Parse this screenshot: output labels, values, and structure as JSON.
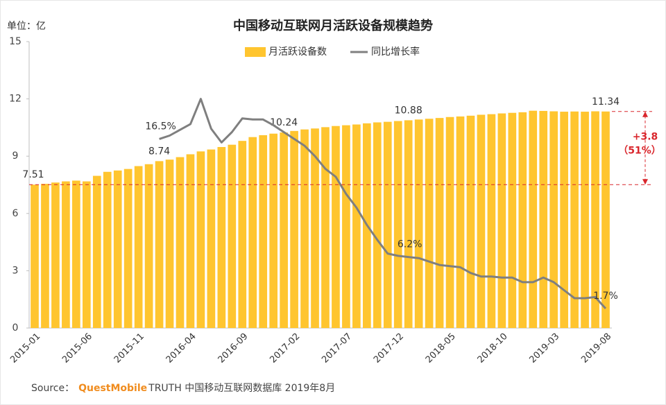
{
  "chart_data": {
    "type": "bar_line",
    "title": "中国移动互联网月活跃设备规模趋势",
    "unit_label": "单位：亿",
    "categories": [
      "2015-01",
      null,
      null,
      null,
      null,
      "2015-06",
      null,
      null,
      null,
      null,
      "2015-11",
      null,
      null,
      null,
      null,
      "2016-04",
      null,
      null,
      null,
      null,
      "2016-09",
      null,
      null,
      null,
      null,
      "2017-02",
      null,
      null,
      null,
      null,
      "2017-07",
      null,
      null,
      null,
      null,
      "2017-12",
      null,
      null,
      null,
      null,
      "2018-05",
      null,
      null,
      null,
      null,
      "2018-10",
      null,
      null,
      null,
      null,
      "2019-03",
      null,
      null,
      null,
      null,
      "2019-08"
    ],
    "series": [
      {
        "name": "月活跃设备数",
        "color": "#ffc52f",
        "type": "bar",
        "values": [
          7.51,
          7.55,
          7.62,
          7.68,
          7.72,
          7.68,
          7.97,
          8.18,
          8.25,
          8.33,
          8.48,
          8.58,
          8.74,
          8.82,
          8.95,
          9.1,
          9.25,
          9.35,
          9.48,
          9.6,
          9.8,
          10.0,
          10.1,
          10.18,
          10.24,
          10.32,
          10.4,
          10.45,
          10.52,
          10.58,
          10.62,
          10.66,
          10.72,
          10.77,
          10.8,
          10.84,
          10.88,
          10.92,
          10.96,
          11.0,
          11.05,
          11.08,
          11.12,
          11.17,
          11.2,
          11.24,
          11.27,
          11.3,
          11.38,
          11.37,
          11.35,
          11.33,
          11.34,
          11.33,
          11.35,
          11.34
        ],
        "value_labels": [
          "7.51",
          null,
          null,
          null,
          null,
          null,
          null,
          null,
          null,
          null,
          null,
          null,
          "8.74",
          null,
          null,
          null,
          null,
          null,
          null,
          null,
          null,
          null,
          null,
          null,
          "10.24",
          null,
          null,
          null,
          null,
          null,
          null,
          null,
          null,
          null,
          null,
          null,
          "10.88",
          null,
          null,
          null,
          null,
          null,
          null,
          null,
          null,
          null,
          null,
          null,
          null,
          null,
          null,
          null,
          null,
          null,
          null,
          "11.34"
        ]
      },
      {
        "name": "同比增长率",
        "color": "#7f7f7f",
        "type": "line",
        "axis": "y2",
        "values": [
          null,
          null,
          null,
          null,
          null,
          null,
          null,
          null,
          null,
          null,
          null,
          null,
          16.5,
          16.8,
          17.3,
          17.8,
          20.0,
          17.4,
          16.2,
          17.1,
          18.3,
          18.2,
          18.2,
          17.7,
          17.1,
          16.5,
          15.9,
          15.0,
          13.9,
          13.2,
          11.7,
          10.5,
          9.0,
          7.7,
          6.5,
          6.3,
          6.2,
          6.1,
          5.8,
          5.5,
          5.4,
          5.3,
          4.8,
          4.5,
          4.5,
          4.4,
          4.4,
          4.0,
          4.0,
          4.4,
          4.0,
          3.3,
          2.6,
          2.6,
          2.7,
          1.7
        ],
        "value_labels": [
          null,
          null,
          null,
          null,
          null,
          null,
          null,
          null,
          null,
          null,
          null,
          null,
          "16.5%",
          null,
          null,
          null,
          null,
          null,
          null,
          null,
          null,
          null,
          null,
          null,
          null,
          null,
          null,
          null,
          null,
          null,
          null,
          null,
          null,
          null,
          null,
          null,
          "6.2%",
          null,
          null,
          null,
          null,
          null,
          null,
          null,
          null,
          null,
          null,
          null,
          null,
          null,
          null,
          null,
          null,
          null,
          null,
          "1.7%"
        ]
      }
    ],
    "ylim": [
      0,
      15
    ],
    "yticks": [
      0,
      3,
      6,
      9,
      12,
      15
    ],
    "y2lim": [
      0,
      25
    ],
    "legend": "top",
    "annotations": {
      "change": "+3.8",
      "change_pct": "（51%）",
      "color": "#d9262c"
    },
    "source": {
      "prefix": "Source：",
      "brand": "QuestMobile",
      "text": "TRUTH 中国移动互联网数据库 2019年8月"
    }
  }
}
